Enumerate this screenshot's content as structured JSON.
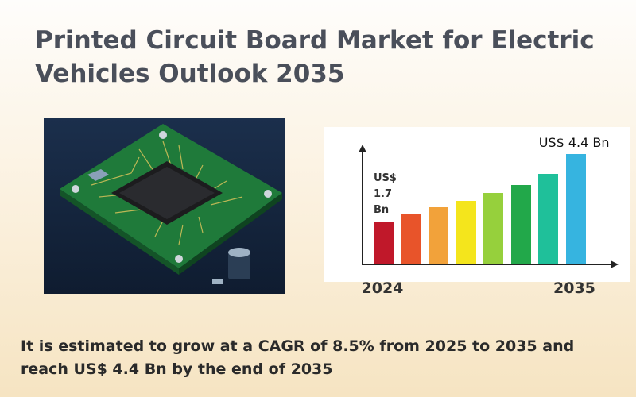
{
  "title": "Printed Circuit Board Market for Electric Vehicles Outlook 2035",
  "chart_data": {
    "type": "bar",
    "categories": [
      "2024",
      null,
      null,
      null,
      null,
      null,
      null,
      "2035"
    ],
    "values": [
      1.7,
      2.0,
      2.26,
      2.53,
      2.83,
      3.16,
      3.6,
      4.4
    ],
    "value_labels": [
      "US$ 1.7 Bn",
      null,
      null,
      null,
      null,
      null,
      null,
      "US$ 4.4 Bn"
    ],
    "colors": [
      "#c0182a",
      "#e8542a",
      "#f2a23a",
      "#f4e51c",
      "#96d03c",
      "#22a84a",
      "#1fc09a",
      "#36b4e0"
    ]
  },
  "footer": "It is estimated to grow at a CAGR of 8.5% from 2025 to 2035 and reach US$ 4.4 Bn by the end of 2035"
}
